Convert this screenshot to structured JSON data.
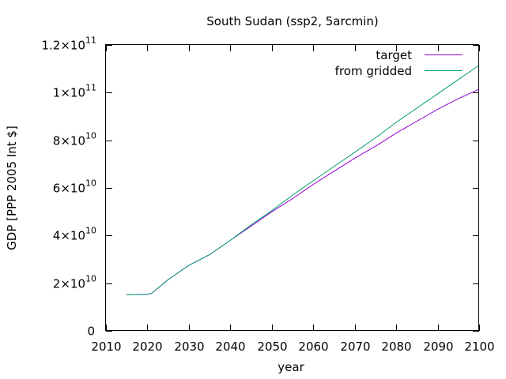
{
  "chart_data": {
    "type": "line",
    "title": "South Sudan (ssp2, 5arcmin)",
    "xlabel": "year",
    "ylabel": "GDP [PPP 2005 Int $]",
    "xlim": [
      2010,
      2100
    ],
    "ylim": [
      0,
      120000000000
    ],
    "x_ticks": [
      2010,
      2020,
      2030,
      2040,
      2050,
      2060,
      2070,
      2080,
      2090,
      2100
    ],
    "x_tick_labels": [
      "2010",
      "2020",
      "2030",
      "2040",
      "2050",
      "2060",
      "2070",
      "2080",
      "2090",
      "2100"
    ],
    "y_ticks": [
      {
        "value": 0,
        "mantissa": "0",
        "exponent": ""
      },
      {
        "value": 20000000000,
        "mantissa": "2×10",
        "exponent": "10"
      },
      {
        "value": 40000000000,
        "mantissa": "4×10",
        "exponent": "10"
      },
      {
        "value": 60000000000,
        "mantissa": "6×10",
        "exponent": "10"
      },
      {
        "value": 80000000000,
        "mantissa": "8×10",
        "exponent": "10"
      },
      {
        "value": 100000000000,
        "mantissa": "1×10",
        "exponent": "11"
      },
      {
        "value": 120000000000,
        "mantissa": "1.2×10",
        "exponent": "11"
      }
    ],
    "grid": false,
    "legend_position": "top-right",
    "series": [
      {
        "name": "target",
        "color": "#9400d3",
        "points": [
          [
            2015,
            15200000000
          ],
          [
            2020,
            15300000000
          ],
          [
            2021,
            15700000000
          ],
          [
            2025,
            21500000000
          ],
          [
            2030,
            27500000000
          ],
          [
            2035,
            32000000000
          ],
          [
            2040,
            38000000000
          ],
          [
            2045,
            44000000000
          ],
          [
            2050,
            50000000000
          ],
          [
            2055,
            55500000000
          ],
          [
            2060,
            61500000000
          ],
          [
            2065,
            67000000000
          ],
          [
            2070,
            72500000000
          ],
          [
            2075,
            77500000000
          ],
          [
            2080,
            83000000000
          ],
          [
            2085,
            88000000000
          ],
          [
            2090,
            93000000000
          ],
          [
            2095,
            97500000000
          ],
          [
            2100,
            101500000000
          ]
        ]
      },
      {
        "name": "from gridded",
        "color": "#009e73",
        "points": [
          [
            2015,
            15200000000
          ],
          [
            2020,
            15300000000
          ],
          [
            2021,
            15700000000
          ],
          [
            2025,
            21500000000
          ],
          [
            2030,
            27500000000
          ],
          [
            2035,
            32000000000
          ],
          [
            2040,
            38000000000
          ],
          [
            2045,
            44500000000
          ],
          [
            2050,
            50500000000
          ],
          [
            2055,
            57000000000
          ],
          [
            2060,
            63000000000
          ],
          [
            2065,
            69000000000
          ],
          [
            2070,
            75000000000
          ],
          [
            2075,
            81000000000
          ],
          [
            2080,
            87500000000
          ],
          [
            2085,
            93500000000
          ],
          [
            2090,
            99500000000
          ],
          [
            2095,
            105500000000
          ],
          [
            2100,
            111500000000
          ]
        ]
      }
    ]
  }
}
